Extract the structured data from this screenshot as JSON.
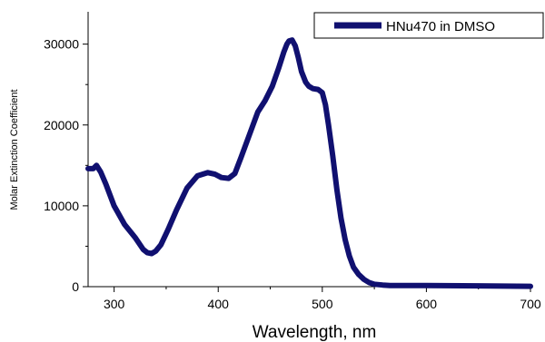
{
  "chart_data": {
    "type": "line",
    "xlabel": "Wavelength, nm",
    "ylabel": "Molar Extinction Coefficient",
    "xlim": [
      275,
      700
    ],
    "ylim": [
      0,
      34000
    ],
    "xticks": [
      300,
      400,
      500,
      600,
      700
    ],
    "yticks": [
      0,
      10000,
      20000,
      30000
    ],
    "legend_position": "top-right",
    "grid": false,
    "series": [
      {
        "name": "HNu470 in DMSO",
        "color": "#101070",
        "x": [
          275,
          280,
          283,
          287,
          292,
          300,
          310,
          320,
          328,
          332,
          336,
          340,
          345,
          352,
          360,
          370,
          380,
          390,
          397,
          403,
          410,
          416,
          422,
          430,
          438,
          445,
          452,
          458,
          463,
          466,
          468,
          471,
          474,
          477,
          480,
          484,
          487,
          491,
          496,
          500,
          503,
          506,
          510,
          514,
          518,
          522,
          526,
          530,
          535,
          540,
          545,
          550,
          558,
          565,
          580,
          600,
          650,
          700
        ],
        "y": [
          14600,
          14600,
          15000,
          14200,
          12700,
          10000,
          7700,
          6100,
          4600,
          4200,
          4100,
          4400,
          5200,
          7100,
          9500,
          12200,
          13700,
          14100,
          13900,
          13500,
          13400,
          14000,
          16000,
          18800,
          21600,
          23000,
          24800,
          27000,
          29000,
          30000,
          30400,
          30500,
          29800,
          28300,
          26600,
          25300,
          24800,
          24500,
          24400,
          24000,
          22500,
          20000,
          16200,
          12000,
          8500,
          5800,
          3800,
          2400,
          1500,
          900,
          500,
          300,
          200,
          150,
          150,
          150,
          100,
          50
        ]
      }
    ]
  }
}
